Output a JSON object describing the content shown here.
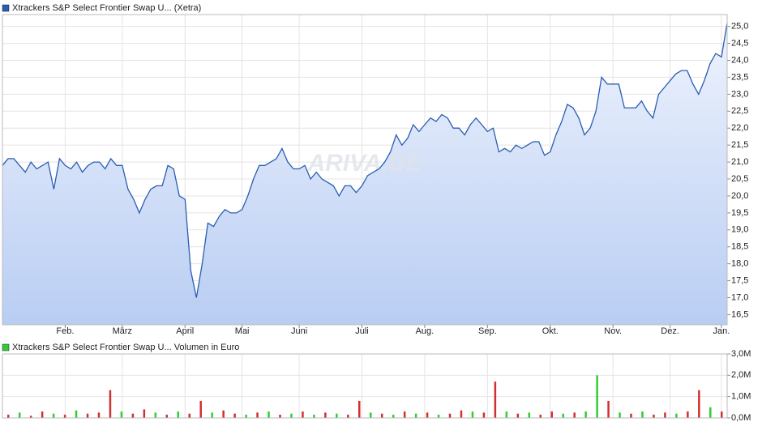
{
  "chart_data": [
    {
      "type": "line",
      "title": "Xtrackers S&P Select Frontier Swap U... (Xetra)",
      "color": "#2a5db0",
      "grid": true,
      "values": [
        20.9,
        21.1,
        21.1,
        20.9,
        20.7,
        21.0,
        20.8,
        20.9,
        21.0,
        20.2,
        21.1,
        20.9,
        20.8,
        21.0,
        20.7,
        20.9,
        21.0,
        21.0,
        20.8,
        21.1,
        20.9,
        20.9,
        20.2,
        19.9,
        19.5,
        19.9,
        20.2,
        20.3,
        20.3,
        20.9,
        20.8,
        20.0,
        19.9,
        17.8,
        17.0,
        18.0,
        19.2,
        19.1,
        19.4,
        19.6,
        19.5,
        19.5,
        19.6,
        20.0,
        20.5,
        20.9,
        20.9,
        21.0,
        21.1,
        21.4,
        21.0,
        20.8,
        20.8,
        20.9,
        20.5,
        20.7,
        20.5,
        20.4,
        20.3,
        20.0,
        20.3,
        20.3,
        20.1,
        20.3,
        20.6,
        20.7,
        20.8,
        21.0,
        21.3,
        21.8,
        21.5,
        21.7,
        22.1,
        21.9,
        22.1,
        22.3,
        22.2,
        22.4,
        22.3,
        22.0,
        22.0,
        21.8,
        22.1,
        22.3,
        22.1,
        21.9,
        22.0,
        21.3,
        21.4,
        21.3,
        21.5,
        21.4,
        21.5,
        21.6,
        21.6,
        21.2,
        21.3,
        21.8,
        22.2,
        22.7,
        22.6,
        22.3,
        21.8,
        22.0,
        22.5,
        23.5,
        23.3,
        23.3,
        23.3,
        22.6,
        22.6,
        22.6,
        22.8,
        22.5,
        22.3,
        23.0,
        23.2,
        23.4,
        23.6,
        23.7,
        23.7,
        23.3,
        23.0,
        23.4,
        23.9,
        24.2,
        24.1,
        25.1
      ],
      "xlim": [
        0,
        127
      ],
      "xticks": [
        {
          "value": 11,
          "label": "Feb."
        },
        {
          "value": 21,
          "label": "März"
        },
        {
          "value": 32,
          "label": "April"
        },
        {
          "value": 42,
          "label": "Mai"
        },
        {
          "value": 52,
          "label": "Juni"
        },
        {
          "value": 63,
          "label": "Juli"
        },
        {
          "value": 74,
          "label": "Aug."
        },
        {
          "value": 85,
          "label": "Sep."
        },
        {
          "value": 96,
          "label": "Okt."
        },
        {
          "value": 107,
          "label": "Nov."
        },
        {
          "value": 117,
          "label": "Dez."
        },
        {
          "value": 126,
          "label": "Jan."
        }
      ],
      "ylim": [
        16.2,
        25.35
      ],
      "yticks": [
        {
          "value": 16.5,
          "label": "16,5"
        },
        {
          "value": 17,
          "label": "17,0"
        },
        {
          "value": 17.5,
          "label": "17,5"
        },
        {
          "value": 18,
          "label": "18,0"
        },
        {
          "value": 18.5,
          "label": "18,5"
        },
        {
          "value": 19,
          "label": "19,0"
        },
        {
          "value": 19.5,
          "label": "19,5"
        },
        {
          "value": 20,
          "label": "20,0"
        },
        {
          "value": 20.5,
          "label": "20,5"
        },
        {
          "value": 21,
          "label": "21,0"
        },
        {
          "value": 21.5,
          "label": "21,5"
        },
        {
          "value": 22,
          "label": "22,0"
        },
        {
          "value": 22.5,
          "label": "22,5"
        },
        {
          "value": 23,
          "label": "23,0"
        },
        {
          "value": 23.5,
          "label": "23,5"
        },
        {
          "value": 24,
          "label": "24,0"
        },
        {
          "value": 24.5,
          "label": "24,5"
        },
        {
          "value": 25,
          "label": "25,0"
        }
      ],
      "watermark": "ARIVA.DE"
    },
    {
      "type": "bar",
      "title": "Xtrackers S&P Select Frontier Swap U... Volumen in Euro",
      "color": "#33cc33",
      "grid": true,
      "values": [
        150000,
        250000,
        100000,
        300000,
        200000,
        150000,
        350000,
        200000,
        250000,
        1300000,
        300000,
        200000,
        400000,
        250000,
        150000,
        300000,
        200000,
        800000,
        250000,
        350000,
        200000,
        150000,
        250000,
        300000,
        150000,
        200000,
        300000,
        150000,
        250000,
        200000,
        150000,
        800000,
        250000,
        200000,
        150000,
        300000,
        200000,
        250000,
        150000,
        200000,
        350000,
        300000,
        250000,
        1700000,
        300000,
        200000,
        250000,
        150000,
        300000,
        200000,
        250000,
        300000,
        2000000,
        800000,
        250000,
        200000,
        300000,
        150000,
        250000,
        200000,
        300000,
        1300000,
        500000,
        300000
      ],
      "colors": [
        "#d03030",
        "#33cc33",
        "#d03030",
        "#d03030",
        "#33cc33",
        "#d03030",
        "#33cc33",
        "#d03030",
        "#d03030",
        "#d03030",
        "#33cc33",
        "#d03030",
        "#d03030",
        "#33cc33",
        "#d03030",
        "#33cc33",
        "#d03030",
        "#d03030",
        "#33cc33",
        "#d03030",
        "#d03030",
        "#33cc33",
        "#d03030",
        "#33cc33",
        "#d03030",
        "#33cc33",
        "#d03030",
        "#33cc33",
        "#d03030",
        "#33cc33",
        "#d03030",
        "#d03030",
        "#33cc33",
        "#d03030",
        "#33cc33",
        "#d03030",
        "#33cc33",
        "#d03030",
        "#33cc33",
        "#d03030",
        "#d03030",
        "#33cc33",
        "#d03030",
        "#d03030",
        "#33cc33",
        "#d03030",
        "#33cc33",
        "#d03030",
        "#d03030",
        "#33cc33",
        "#d03030",
        "#33cc33",
        "#33cc33",
        "#d03030",
        "#33cc33",
        "#d03030",
        "#33cc33",
        "#d03030",
        "#d03030",
        "#33cc33",
        "#d03030",
        "#d03030",
        "#33cc33",
        "#d03030"
      ],
      "ylim": [
        0,
        3000000
      ],
      "yticks": [
        {
          "value": 0,
          "label": "0,0M"
        },
        {
          "value": 1000000,
          "label": "1,0M"
        },
        {
          "value": 2000000,
          "label": "2,0M"
        },
        {
          "value": 3000000,
          "label": "3,0M"
        }
      ]
    }
  ]
}
